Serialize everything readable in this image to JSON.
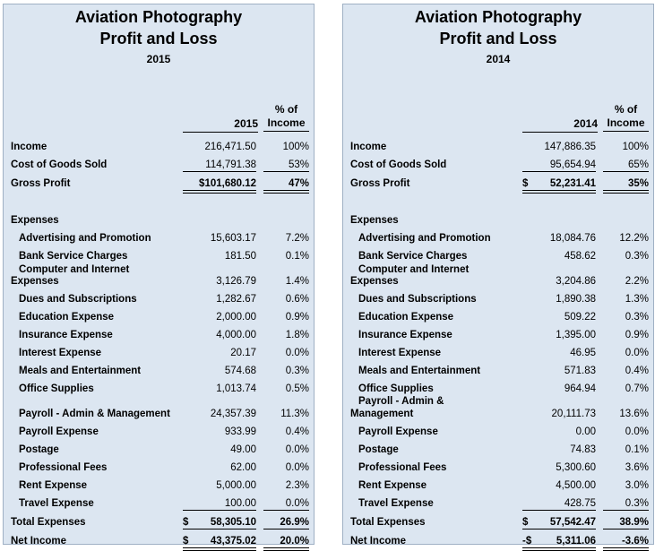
{
  "panels": [
    {
      "title1": "Aviation Photography",
      "title2": "Profit and Loss",
      "subtitle": "2015",
      "col_amount": "2015",
      "col_pct_1": "% of",
      "col_pct_2": "Income",
      "income": {
        "label": "Income",
        "amount": "216,471.50",
        "pct": "100%"
      },
      "cogs": {
        "label": "Cost of Goods Sold",
        "amount": "114,791.38",
        "pct": "53%"
      },
      "gross": {
        "label": "Gross Profit",
        "amount": "$101,680.12",
        "pct": "47%"
      },
      "expenses_header": "Expenses",
      "adv": {
        "label": "Advertising and Promotion",
        "amount": "15,603.17",
        "pct": "7.2%"
      },
      "bank": {
        "label": "Bank Service Charges",
        "amount": "181.50",
        "pct": "0.1%"
      },
      "comp": {
        "label1": "Computer and Internet",
        "label2": "Expenses",
        "amount": "3,126.79",
        "pct": "1.4%"
      },
      "dues": {
        "label": "Dues and Subscriptions",
        "amount": "1,282.67",
        "pct": "0.6%"
      },
      "edu": {
        "label": "Education Expense",
        "amount": "2,000.00",
        "pct": "0.9%"
      },
      "ins": {
        "label": "Insurance Expense",
        "amount": "4,000.00",
        "pct": "1.8%"
      },
      "int": {
        "label": "Interest Expense",
        "amount": "20.17",
        "pct": "0.0%"
      },
      "meals": {
        "label": "Meals and Entertainment",
        "amount": "574.68",
        "pct": "0.3%"
      },
      "office": {
        "label": "Office Supplies",
        "amount": "1,013.74",
        "pct": "0.5%"
      },
      "payadm": {
        "label": "Payroll - Admin & Management",
        "amount": "24,357.39",
        "pct": "11.3%"
      },
      "payexp": {
        "label": "Payroll Expense",
        "amount": "933.99",
        "pct": "0.4%"
      },
      "post": {
        "label": "Postage",
        "amount": "49.00",
        "pct": "0.0%"
      },
      "prof": {
        "label": "Professional Fees",
        "amount": "62.00",
        "pct": "0.0%"
      },
      "rent": {
        "label": "Rent Expense",
        "amount": "5,000.00",
        "pct": "2.3%"
      },
      "travel": {
        "label": "Travel Expense",
        "amount": "100.00",
        "pct": "0.0%"
      },
      "total": {
        "label": "Total Expenses",
        "cur": "$",
        "amount": "58,305.10",
        "pct": "26.9%"
      },
      "net": {
        "label": "Net Income",
        "cur": "$",
        "amount": "43,375.02",
        "pct": "20.0%"
      }
    },
    {
      "title1": "Aviation Photography",
      "title2": "Profit and Loss",
      "subtitle": "2014",
      "col_amount": "2014",
      "col_pct_1": "% of",
      "col_pct_2": "Income",
      "income": {
        "label": "Income",
        "amount": "147,886.35",
        "pct": "100%"
      },
      "cogs": {
        "label": "Cost of Goods Sold",
        "amount": "95,654.94",
        "pct": "65%"
      },
      "gross": {
        "label": "Gross Profit",
        "cur": "$",
        "amount": "52,231.41",
        "pct": "35%"
      },
      "expenses_header": "Expenses",
      "adv": {
        "label": "Advertising and Promotion",
        "amount": "18,084.76",
        "pct": "12.2%"
      },
      "bank": {
        "label": "Bank Service Charges",
        "amount": "458.62",
        "pct": "0.3%"
      },
      "comp": {
        "label1": "Computer and Internet",
        "label2": "Expenses",
        "amount": "3,204.86",
        "pct": "2.2%"
      },
      "dues": {
        "label": "Dues and Subscriptions",
        "amount": "1,890.38",
        "pct": "1.3%"
      },
      "edu": {
        "label": "Education Expense",
        "amount": "509.22",
        "pct": "0.3%"
      },
      "ins": {
        "label": "Insurance Expense",
        "amount": "1,395.00",
        "pct": "0.9%"
      },
      "int": {
        "label": "Interest Expense",
        "amount": "46.95",
        "pct": "0.0%"
      },
      "meals": {
        "label": "Meals and Entertainment",
        "amount": "571.83",
        "pct": "0.4%"
      },
      "office": {
        "label": "Office Supplies",
        "amount": "964.94",
        "pct": "0.7%"
      },
      "payadm": {
        "label1": "Payroll - Admin &",
        "label2": "Management",
        "amount": "20,111.73",
        "pct": "13.6%"
      },
      "payexp": {
        "label": "Payroll Expense",
        "amount": "0.00",
        "pct": "0.0%"
      },
      "post": {
        "label": "Postage",
        "amount": "74.83",
        "pct": "0.1%"
      },
      "prof": {
        "label": "Professional Fees",
        "amount": "5,300.60",
        "pct": "3.6%"
      },
      "rent": {
        "label": "Rent Expense",
        "amount": "4,500.00",
        "pct": "3.0%"
      },
      "travel": {
        "label": "Travel Expense",
        "amount": "428.75",
        "pct": "0.3%"
      },
      "total": {
        "label": "Total Expenses",
        "cur": "$",
        "amount": "57,542.47",
        "pct": "38.9%"
      },
      "net": {
        "label": "Net Income",
        "cur": "-$",
        "amount": "5,311.06",
        "pct": "-3.6%"
      }
    }
  ]
}
